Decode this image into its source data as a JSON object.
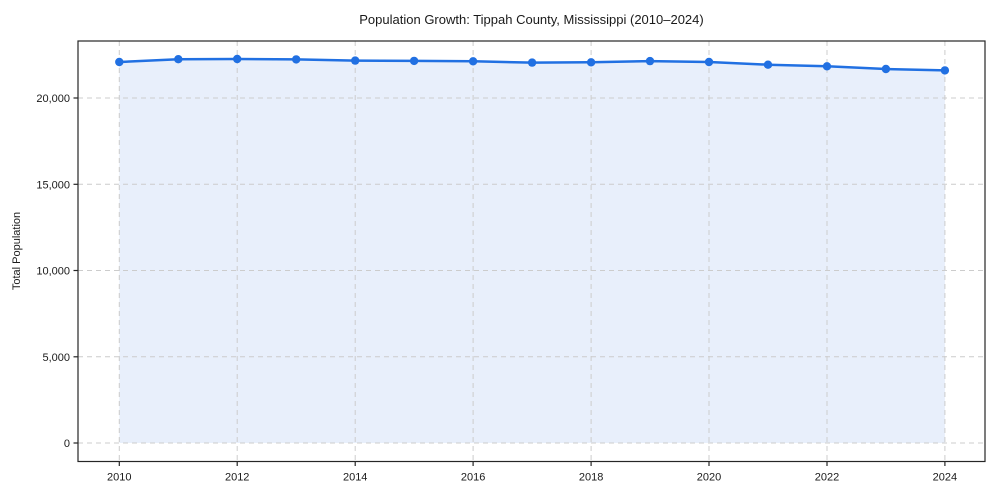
{
  "chart_data": {
    "type": "line",
    "title": "Population Growth: Tippah County, Mississippi (2010–2024)",
    "xlabel": "",
    "ylabel": "Total Population",
    "x": [
      2010,
      2011,
      2012,
      2013,
      2014,
      2015,
      2016,
      2017,
      2018,
      2019,
      2020,
      2021,
      2022,
      2023,
      2024
    ],
    "series": [
      {
        "name": "Total Population",
        "values": [
          22090,
          22250,
          22260,
          22240,
          22170,
          22150,
          22130,
          22050,
          22070,
          22140,
          22090,
          21930,
          21840,
          21680,
          21600
        ]
      }
    ],
    "x_ticks": [
      2010,
      2012,
      2014,
      2016,
      2018,
      2020,
      2022,
      2024
    ],
    "y_ticks": [
      0,
      5000,
      10000,
      15000,
      20000
    ],
    "y_tick_labels": [
      "0",
      "5,000",
      "10,000",
      "15,000",
      "20,000"
    ],
    "xlim": [
      2009.3,
      2024.68
    ],
    "ylim": [
      -1072,
      23305
    ],
    "grid": true,
    "grid_style": "dashed",
    "legend": false,
    "fill_to_zero": true,
    "colors": {
      "line": "#2170e2",
      "marker": "#2170e2",
      "fill": "#e8effb",
      "grid": "#cccccc",
      "spine": "#262626",
      "text": "#1a1a1a",
      "background": "#ffffff"
    }
  }
}
